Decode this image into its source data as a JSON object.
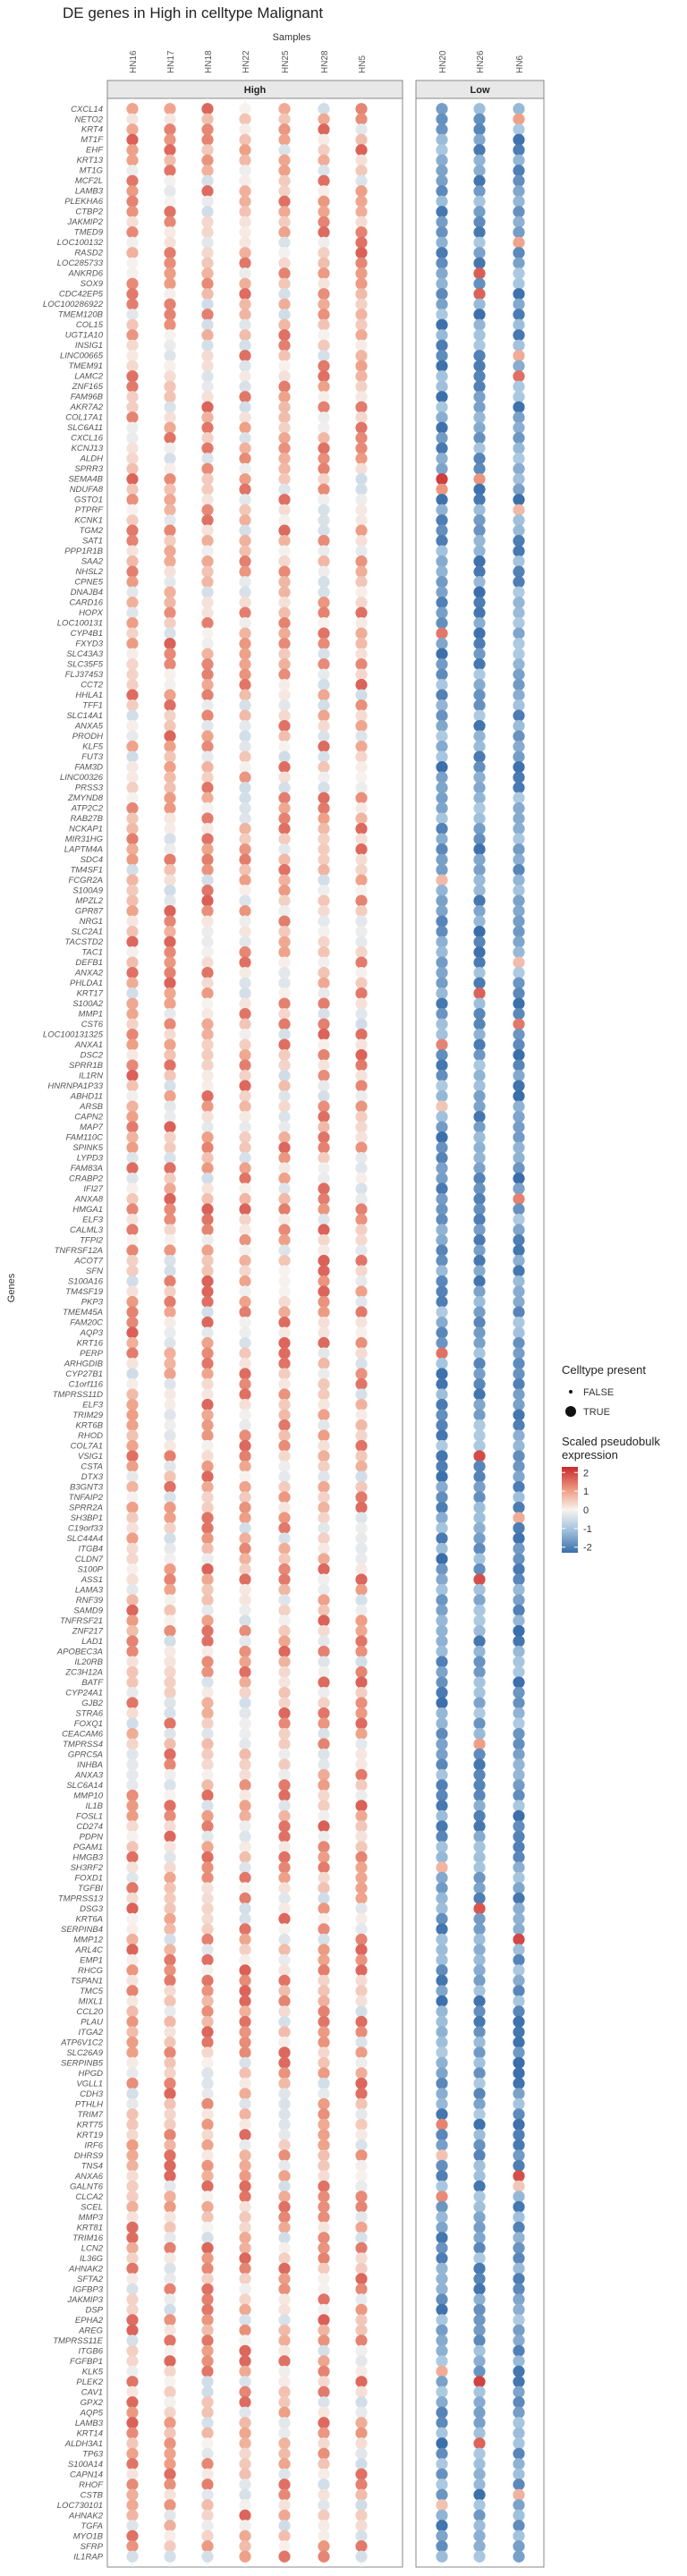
{
  "chart_data": {
    "type": "dot_heatmap",
    "title": "DE genes in High in celltype Malignant",
    "xlabel": "Samples",
    "ylabel": "Genes",
    "facets": [
      {
        "name": "High",
        "samples": [
          "HN16",
          "HN17",
          "HN18",
          "HN22",
          "HN25",
          "HN28",
          "HN5"
        ]
      },
      {
        "name": "Low",
        "samples": [
          "HN20",
          "HN26",
          "HN6"
        ]
      }
    ],
    "genes_visible_labels": [
      "CXCL14",
      "NETO2",
      "KRT4",
      "MT1F",
      "EHF",
      "KRT13",
      "MT1G",
      "MCF2L",
      "LAMB3",
      "PLEKHA6",
      "CTBP2",
      "JAKMIP2",
      "TMED9",
      "LOC100132",
      "RASD2",
      "LOC285733",
      "ANKRD6",
      "SOX9",
      "CDC42EP5",
      "LOC100286922",
      "TMEM120B",
      "COL15",
      "UGT1A10",
      "INSIG1",
      "LINC00665",
      "TMEM91",
      "LAMC2",
      "ZNF165",
      "FAM96B",
      "AKR7A2",
      "COL17A1",
      "SLC6A11",
      "CXCL16",
      "KCNJ13",
      "ALDH",
      "SPRR3",
      "SEMA4B",
      "NDUFA8",
      "GSTO1",
      "PTPRF",
      "KCNK1",
      "TGM2",
      "SAT1",
      "PPP1R1B",
      "SAA2",
      "NHSL2",
      "CPNE5",
      "DNAJB4",
      "CARD16",
      "HOPX",
      "LOC100131",
      "CYP4B1",
      "FXYD3",
      "SLC43A3",
      "SLC35F5",
      "FLJ37453",
      "CCT2",
      "HHLA1",
      "TFF1",
      "SLC14A1",
      "ANXA5",
      "PRODH",
      "KLF5",
      "FUT3",
      "FAM3D",
      "LINC00326",
      "PRSS3",
      "ZMYND8",
      "ATP2C2",
      "RAB27B",
      "NCKAP1",
      "MIR31HG",
      "LAPTM4A",
      "SDC4",
      "TM4SF1",
      "FCGR2A",
      "S100A9",
      "MPZL2",
      "GPR87",
      "NRG1",
      "SLC2A1",
      "TACSTD2",
      "TAC1",
      "DEFB1",
      "ANXA2",
      "PHLDA1",
      "KRT17",
      "S100A2",
      "MMP1",
      "CST6",
      "LOC100131325",
      "ANXA1",
      "DSC2",
      "SPRR1B",
      "IL1RN",
      "HNRNPA1P33",
      "ABHD11",
      "ARSB",
      "CAPN2",
      "MAP7",
      "FAM110C",
      "SPINK5",
      "LYPD3",
      "FAM83A",
      "CRABP2",
      "IFI27",
      "ANXA8",
      "HMGA1",
      "ELF3",
      "CALML3",
      "TFPI2",
      "TNFRSF12A",
      "ACOT7",
      "SFN",
      "S100A16",
      "TM4SF19",
      "PKP3",
      "TMEM45A",
      "FAM20C",
      "AQP3",
      "KRT16",
      "PERP",
      "ARHGDIB",
      "CYP27B1",
      "C1orf116",
      "TMPRSS11D",
      "ELF3",
      "TRIM29",
      "KRT6B",
      "RHOD",
      "COL7A1",
      "VSIG1",
      "CSTA",
      "DTX3",
      "B3GNT3",
      "TNFAIP2",
      "SPRR2A",
      "SH3BP1",
      "C19orf33",
      "SLC44A4",
      "ITGB4",
      "CLDN7",
      "S100P",
      "ASS1",
      "LAMA3",
      "RNF39",
      "SAMD9",
      "TNFRSF21",
      "ZNF217",
      "LAD1",
      "APOBEC3A",
      "IL20RB",
      "ZC3H12A",
      "BATF",
      "CYP24A1",
      "GJB2",
      "STRA6",
      "FOXQ1",
      "CEACAM6",
      "TMPRSS4",
      "GPRC5A",
      "INHBA",
      "ANXA3",
      "SLC6A14",
      "MMP10",
      "IL1B",
      "FOSL1",
      "CD274",
      "PDPN",
      "PGAM1",
      "HMGB3",
      "SH3RF2",
      "FOXD1",
      "TGFBI",
      "TMPRSS13",
      "DSG3",
      "KRT6A",
      "SERPINB4",
      "MMP12",
      "ARL4C",
      "EMP1",
      "RHCG",
      "TSPAN1",
      "TMC5",
      "MIXL1",
      "CCL20",
      "PLAU",
      "ITGA2",
      "ATP6V1C2",
      "SLC26A9",
      "SERPINB5",
      "HPGD",
      "VGLL1",
      "CDH3",
      "PTHLH",
      "TRIM7",
      "KRT75",
      "KRT19",
      "IRF6",
      "DHRS9",
      "TNS4",
      "ANXA6",
      "GALNT6",
      "CLCA2",
      "SCEL",
      "MMP3",
      "KRT81",
      "TRIM16",
      "LCN2",
      "IL36G",
      "AHNAK2",
      "SFTA2",
      "IGFBP3",
      "JAKMIP3",
      "DSP",
      "EPHA2",
      "AREG",
      "TMPRSS11E",
      "ITGB6",
      "FGFBP1",
      "KLK5",
      "PLEK2",
      "CAV1",
      "GPX2",
      "AQP5",
      "LAMB3",
      "KRT14",
      "ALDH3A1",
      "TP63",
      "S100A14",
      "CAPN14",
      "RHOF",
      "CSTB",
      "LOC730101",
      "AHNAK2",
      "TGFA",
      "MYO1B",
      "SFRP",
      "IL1RAP"
    ],
    "n_genes_estimated": 260,
    "value_colors": {
      "-2": "#3a6eaa",
      "-1": "#a8c7e0",
      "0": "#f7f2ef",
      "1": "#eea087",
      "2": "#c8282e"
    },
    "legend": {
      "size_title": "Celltype present",
      "size_entries": [
        "FALSE",
        "TRUE"
      ],
      "color_title_line1": "Scaled pseudobulk",
      "color_title_line2": "expression",
      "color_ticks": [
        "2",
        "1",
        "0",
        "-1",
        "-2"
      ],
      "placement": "right"
    },
    "value_range": [
      -2.3,
      2.3
    ],
    "pattern_note_values": {
      "High_mean": 0.6,
      "Low_mean": -1.6
    }
  }
}
